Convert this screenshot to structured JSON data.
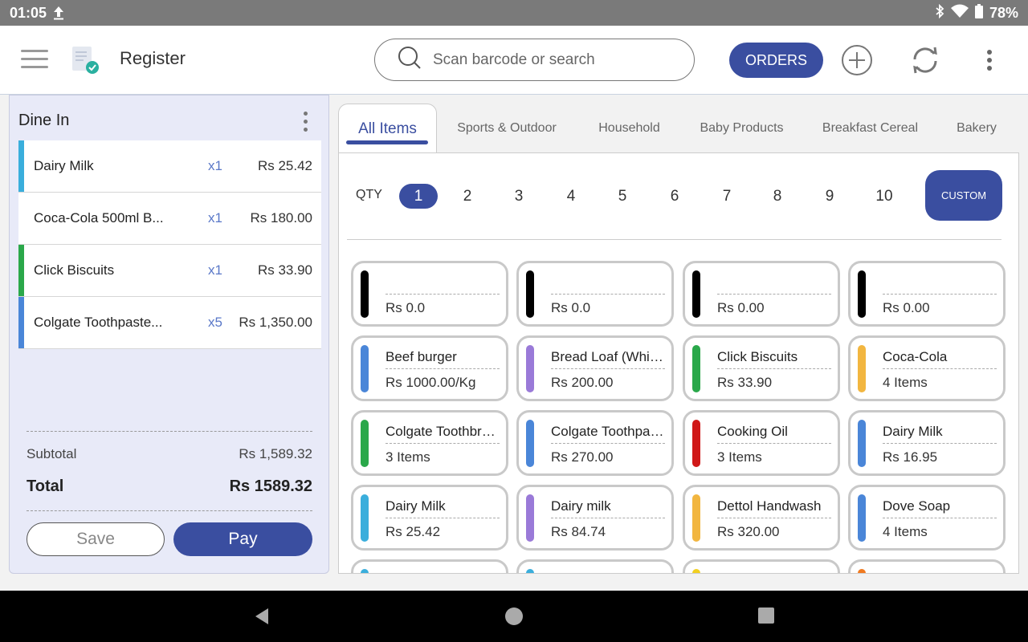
{
  "status_bar": {
    "time": "01:05",
    "battery": "78%"
  },
  "app_bar": {
    "title": "Register",
    "search_placeholder": "Scan barcode or search",
    "orders_label": "ORDERS"
  },
  "cart": {
    "header": "Dine In",
    "items": [
      {
        "name": "Dairy Milk",
        "qty": "x1",
        "price": "Rs 25.42",
        "color": "#3aaedc"
      },
      {
        "name": "Coca-Cola 500ml B...",
        "qty": "x1",
        "price": "Rs 180.00",
        "color": "#ffffff"
      },
      {
        "name": "Click Biscuits",
        "qty": "x1",
        "price": "Rs 33.90",
        "color": "#2aa84a"
      },
      {
        "name": "Colgate Toothpaste...",
        "qty": "x5",
        "price": "Rs 1,350.00",
        "color": "#4a86d8"
      }
    ],
    "subtotal_label": "Subtotal",
    "subtotal_value": "Rs 1,589.32",
    "total_label": "Total",
    "total_value": "Rs 1589.32",
    "save_label": "Save",
    "pay_label": "Pay"
  },
  "tabs": [
    "All Items",
    "Sports & Outdoor",
    "Household",
    "Baby Products",
    "Breakfast Cereal",
    "Bakery"
  ],
  "qty_selector": {
    "label": "QTY",
    "options": [
      "1",
      "2",
      "3",
      "4",
      "5",
      "6",
      "7",
      "8",
      "9",
      "10"
    ],
    "selected": "1",
    "custom_label": "CUSTOM"
  },
  "products": [
    {
      "name": "",
      "price": "Rs 0.0",
      "color": "#000000"
    },
    {
      "name": "",
      "price": "Rs 0.0",
      "color": "#000000"
    },
    {
      "name": "",
      "price": "Rs 0.00",
      "color": "#000000"
    },
    {
      "name": "",
      "price": "Rs 0.00",
      "color": "#000000"
    },
    {
      "name": "Beef burger",
      "price": "Rs 1000.00/Kg",
      "color": "#4a86d8"
    },
    {
      "name": "Bread Loaf (White)",
      "price": "Rs 200.00",
      "color": "#9a7ad8"
    },
    {
      "name": "Click Biscuits",
      "price": "Rs 33.90",
      "color": "#2aa84a"
    },
    {
      "name": "Coca-Cola",
      "price": "4 Items",
      "color": "#f2b640"
    },
    {
      "name": "Colgate Toothbrush",
      "price": "3 Items",
      "color": "#2aa84a"
    },
    {
      "name": "Colgate Toothpaste",
      "price": "Rs 270.00",
      "color": "#4a86d8"
    },
    {
      "name": "Cooking Oil",
      "price": "3 Items",
      "color": "#d01818"
    },
    {
      "name": "Dairy Milk",
      "price": "Rs 16.95",
      "color": "#4a86d8"
    },
    {
      "name": "Dairy Milk",
      "price": "Rs 25.42",
      "color": "#3aaedc"
    },
    {
      "name": "Dairy milk",
      "price": "Rs 84.74",
      "color": "#9a7ad8"
    },
    {
      "name": "Dettol Handwash",
      "price": "Rs 320.00",
      "color": "#f2b640"
    },
    {
      "name": "Dove Soap",
      "price": "4 Items",
      "color": "#4a86d8"
    },
    {
      "name": "",
      "price": "",
      "color": "#3aaedc"
    },
    {
      "name": "",
      "price": "",
      "color": "#3aaedc"
    },
    {
      "name": "",
      "price": "",
      "color": "#f2d020"
    },
    {
      "name": "",
      "price": "",
      "color": "#f07a20"
    }
  ]
}
